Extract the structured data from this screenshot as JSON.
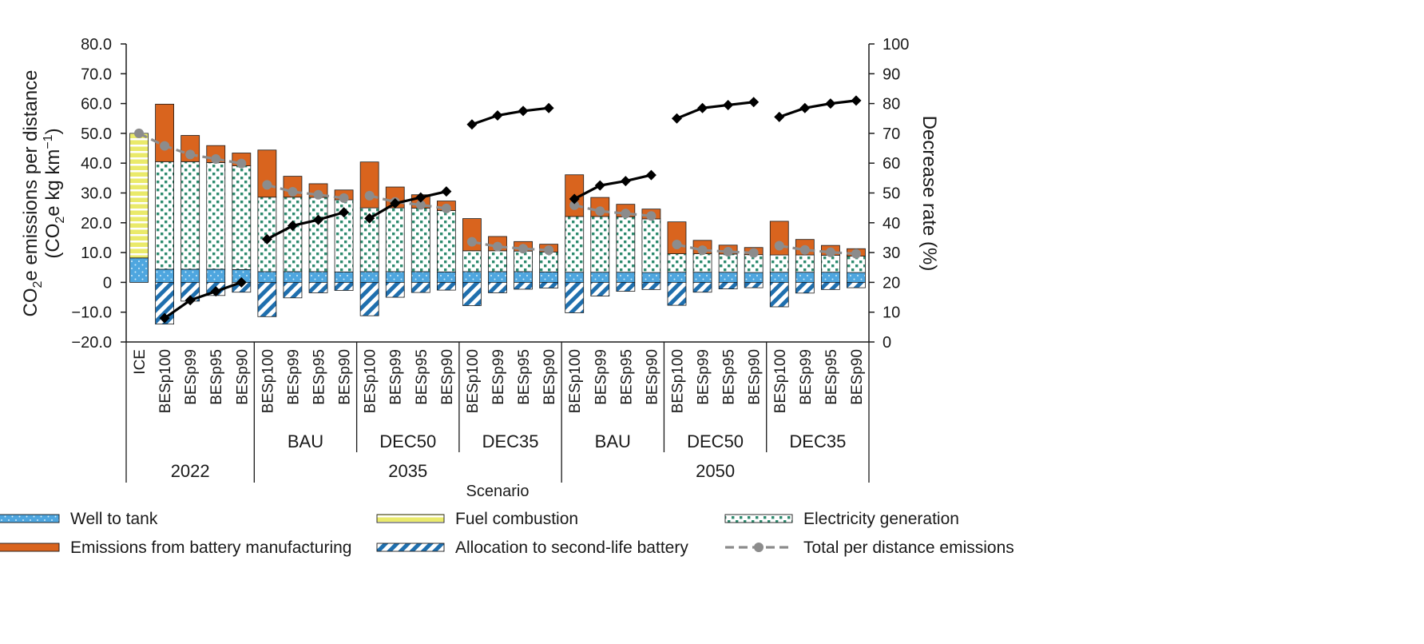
{
  "chart_data": {
    "type": "bar",
    "subtype": "stacked-bar-with-lines",
    "title": "",
    "xlabel": "Scenario",
    "ylabel_line1": "CO",
    "ylabel_sub1": "2",
    "ylabel_mid": "e emissions per distance",
    "ylabel_line2_open": "(CO",
    "ylabel_sub2": "2",
    "ylabel_line2_rest": "e kg km",
    "ylabel_sup": "−1",
    "ylabel_close": ")",
    "y2label": "Decrease rate (%)",
    "ylim": [
      -20,
      80
    ],
    "y2lim": [
      0,
      100
    ],
    "y_ticks": [
      "80.0",
      "70.0",
      "60.0",
      "50.0",
      "40.0",
      "30.0",
      "20.0",
      "10.0",
      "0",
      "−10.0",
      "−20.0"
    ],
    "y2_ticks": [
      "100",
      "90",
      "80",
      "70",
      "60",
      "50",
      "40",
      "30",
      "20",
      "10",
      "0"
    ],
    "categories": [
      "ICE",
      "BESp100",
      "BESp99",
      "BESp95",
      "BESp90",
      "BESp100",
      "BESp99",
      "BESp95",
      "BESp90",
      "BESp100",
      "BESp99",
      "BESp95",
      "BESp90",
      "BESp100",
      "BESp99",
      "BESp95",
      "BESp90",
      "BESp100",
      "BESp99",
      "BESp95",
      "BESp90",
      "BESp100",
      "BESp99",
      "BESp95",
      "BESp90",
      "BESp100",
      "BESp99",
      "BESp95",
      "BESp90"
    ],
    "policy_groups": [
      {
        "label": "",
        "start": 0,
        "end": 4
      },
      {
        "label": "BAU",
        "start": 5,
        "end": 8
      },
      {
        "label": "DEC50",
        "start": 9,
        "end": 12
      },
      {
        "label": "DEC35",
        "start": 13,
        "end": 16
      },
      {
        "label": "BAU",
        "start": 17,
        "end": 20
      },
      {
        "label": "DEC50",
        "start": 21,
        "end": 24
      },
      {
        "label": "DEC35",
        "start": 25,
        "end": 28
      }
    ],
    "year_groups": [
      {
        "label": "2022",
        "start": 0,
        "end": 4
      },
      {
        "label": "2035",
        "start": 5,
        "end": 16
      },
      {
        "label": "2050",
        "start": 17,
        "end": 28
      }
    ],
    "series": [
      {
        "name": "Well to tank",
        "key": "wtt",
        "values": [
          8.2,
          4.4,
          4.4,
          4.4,
          4.3,
          3.6,
          3.6,
          3.6,
          3.5,
          3.6,
          3.6,
          3.6,
          3.5,
          3.6,
          3.6,
          3.6,
          3.5,
          3.4,
          3.4,
          3.4,
          3.3,
          3.4,
          3.4,
          3.4,
          3.3,
          3.4,
          3.4,
          3.4,
          3.3
        ]
      },
      {
        "name": "Fuel combustion",
        "key": "fuel",
        "values": [
          41.8,
          0,
          0,
          0,
          0,
          0,
          0,
          0,
          0,
          0,
          0,
          0,
          0,
          0,
          0,
          0,
          0,
          0,
          0,
          0,
          0,
          0,
          0,
          0,
          0,
          0,
          0,
          0,
          0
        ]
      },
      {
        "name": "Electricity generation",
        "key": "elec",
        "values": [
          0,
          36.1,
          36.1,
          35.8,
          34.8,
          25.0,
          25.0,
          24.9,
          24.2,
          21.4,
          21.4,
          21.3,
          20.6,
          7.0,
          7.0,
          6.9,
          6.7,
          18.7,
          18.7,
          18.6,
          18.0,
          6.2,
          6.2,
          6.1,
          6.0,
          5.8,
          5.8,
          5.7,
          5.5
        ]
      },
      {
        "name": "Emissions from battery manufacturing",
        "key": "batt",
        "values": [
          0,
          19.3,
          8.8,
          5.7,
          4.3,
          15.8,
          7.0,
          4.6,
          3.3,
          15.4,
          7.0,
          4.5,
          3.2,
          10.8,
          4.8,
          3.2,
          2.6,
          14.0,
          6.4,
          4.2,
          3.3,
          10.7,
          4.5,
          3.0,
          2.4,
          11.3,
          5.2,
          3.3,
          2.5
        ]
      },
      {
        "name": "Allocation to second-life battery",
        "key": "alloc",
        "values": [
          0,
          -14.0,
          -6.3,
          -4.4,
          -3.3,
          -11.5,
          -5.2,
          -3.5,
          -2.7,
          -11.2,
          -5.0,
          -3.4,
          -2.6,
          -7.8,
          -3.5,
          -2.3,
          -1.9,
          -10.2,
          -4.6,
          -3.0,
          -2.4,
          -7.7,
          -3.3,
          -2.2,
          -1.8,
          -8.2,
          -3.6,
          -2.4,
          -1.8
        ]
      }
    ],
    "total_per_distance_emissions": {
      "name": "Total per distance emissions",
      "segments": [
        [
          0,
          4
        ],
        [
          5,
          8
        ],
        [
          9,
          12
        ],
        [
          13,
          16
        ],
        [
          17,
          20
        ],
        [
          21,
          24
        ],
        [
          25,
          28
        ]
      ],
      "values": [
        50.0,
        45.8,
        42.9,
        41.4,
        39.9,
        32.7,
        30.4,
        29.4,
        28.3,
        29.1,
        27.0,
        26.0,
        24.8,
        13.6,
        12.0,
        11.3,
        10.8,
        25.9,
        23.9,
        23.1,
        22.3,
        12.7,
        10.8,
        10.3,
        9.9,
        12.3,
        10.9,
        10.1,
        9.6
      ]
    },
    "decrease_rate": {
      "name": "Decrease rate (%)",
      "segments": [
        [
          1,
          4
        ],
        [
          5,
          8
        ],
        [
          9,
          12
        ],
        [
          13,
          16
        ],
        [
          17,
          20
        ],
        [
          21,
          24
        ],
        [
          25,
          28
        ]
      ],
      "values": [
        null,
        8.0,
        14.0,
        17.0,
        20.0,
        34.5,
        39.0,
        41.0,
        43.5,
        41.5,
        46.5,
        48.5,
        50.5,
        73.0,
        76.0,
        77.5,
        78.5,
        48.0,
        52.5,
        54.0,
        56.0,
        75.0,
        78.5,
        79.5,
        80.5,
        75.5,
        78.5,
        80.0,
        81.0
      ]
    },
    "legend_position": "bottom",
    "grid": false
  },
  "colors": {
    "wtt": "#4ea6df",
    "wtt_dot": "#d4ecfa",
    "fuel": "#eaea6a",
    "fuel_stripe": "#ffffff",
    "elec_bg": "#ffffff",
    "elec_dot": "#2e8b6f",
    "batt": "#d9641e",
    "alloc": "#1f6fae",
    "alloc_bg": "#ffffff",
    "total": "#8c8c8c",
    "decrease": "#000000",
    "axis": "#1a1a1a"
  },
  "legend": [
    {
      "key": "wtt",
      "label": "Well to tank"
    },
    {
      "key": "fuel",
      "label": "Fuel combustion"
    },
    {
      "key": "elec",
      "label": "Electricity generation"
    },
    {
      "key": "batt",
      "label": "Emissions from battery manufacturing"
    },
    {
      "key": "alloc",
      "label": "Allocation to second-life battery"
    },
    {
      "key": "total",
      "label": "Total per distance emissions"
    }
  ]
}
